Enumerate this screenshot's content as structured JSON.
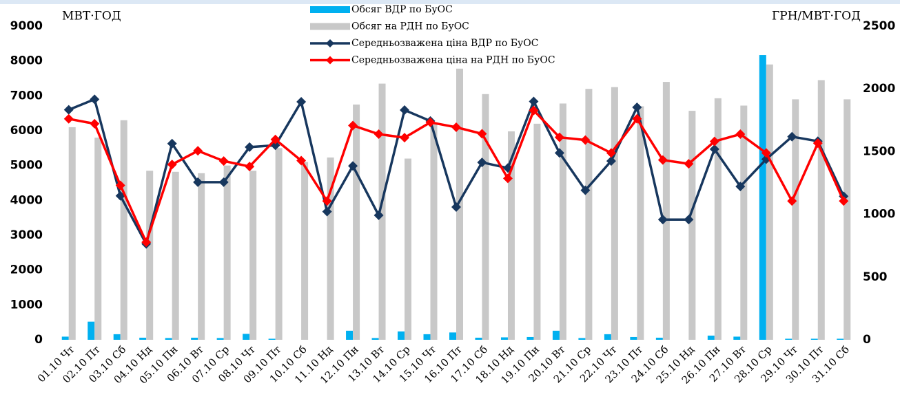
{
  "chart_data": {
    "type": "combo",
    "y_label": "МВТ·ГОД",
    "y2_label": "ГРН/МВТ·ГОД",
    "categories": [
      "01.10 Чт",
      "02.10 Пт",
      "03.10 Сб",
      "04.10 Нд",
      "05.10 Пн",
      "06.10 Вт",
      "07.10 Ср",
      "08.10 Чт",
      "09.10 Пт",
      "10.10 Сб",
      "11.10 Нд",
      "12.10 Пн",
      "13.10 Вт",
      "14.10 Ср",
      "15.10 Чт",
      "16.10 Пт",
      "17.10 Сб",
      "18.10 Нд",
      "19.10 Пн",
      "20.10 Вт",
      "21.10 Ср",
      "22.10 Чт",
      "23.10 Пт",
      "24.10 Сб",
      "25.10 Нд",
      "26.10 Пн",
      "27.10 Вт",
      "28.10 Ср",
      "29.10 Чт",
      "30.10 Пт",
      "31.10 Сб"
    ],
    "series": [
      {
        "name": "Обсяг ВДР по БуОС",
        "type": "bar",
        "color": "#00b0f0",
        "values": [
          90,
          520,
          160,
          60,
          50,
          60,
          50,
          170,
          30,
          0,
          0,
          260,
          50,
          240,
          160,
          210,
          60,
          70,
          80,
          260,
          50,
          160,
          80,
          60,
          0,
          120,
          90,
          8170,
          30,
          30,
          30
        ]
      },
      {
        "name": "Обсяг на РДН по БуОС",
        "type": "bar",
        "color": "#c8c8c8",
        "values": [
          6100,
          5800,
          6300,
          4850,
          4820,
          4780,
          5000,
          4850,
          5500,
          5100,
          5230,
          6750,
          7350,
          5200,
          6200,
          7780,
          7050,
          5980,
          6200,
          6780,
          7200,
          7250,
          6700,
          7400,
          6570,
          6930,
          6720,
          7900,
          6900,
          7450,
          6900
        ]
      },
      {
        "name": "Середньозважена ціна ВДР по БуОС",
        "type": "line",
        "axis": "y2",
        "color": "#17375e",
        "values": [
          1833,
          1917,
          1147,
          764,
          1564,
          1256,
          1256,
          1536,
          1550,
          1897,
          1022,
          1386,
          992,
          1831,
          1744,
          1058,
          1414,
          1369,
          1900,
          1489,
          1192,
          1425,
          1853,
          958,
          958,
          1519,
          1222,
          1439,
          1619,
          1583,
          1144
        ]
      },
      {
        "name": "Середньозважена ціна на РДН по БуОС",
        "type": "line",
        "axis": "y2",
        "color": "#ff0000",
        "values": [
          1761,
          1722,
          1231,
          778,
          1397,
          1506,
          1425,
          1381,
          1597,
          1428,
          1106,
          1708,
          1639,
          1611,
          1733,
          1694,
          1642,
          1286,
          1828,
          1614,
          1592,
          1489,
          1761,
          1433,
          1403,
          1581,
          1639,
          1489,
          1106,
          1567,
          1106
        ]
      }
    ],
    "ylim": [
      0,
      9000
    ],
    "yticks": [
      0,
      1000,
      2000,
      3000,
      4000,
      5000,
      6000,
      7000,
      8000,
      9000
    ],
    "y2lim": [
      0,
      2500
    ],
    "y2ticks": [
      0,
      500,
      1000,
      1500,
      2000,
      2500
    ]
  }
}
